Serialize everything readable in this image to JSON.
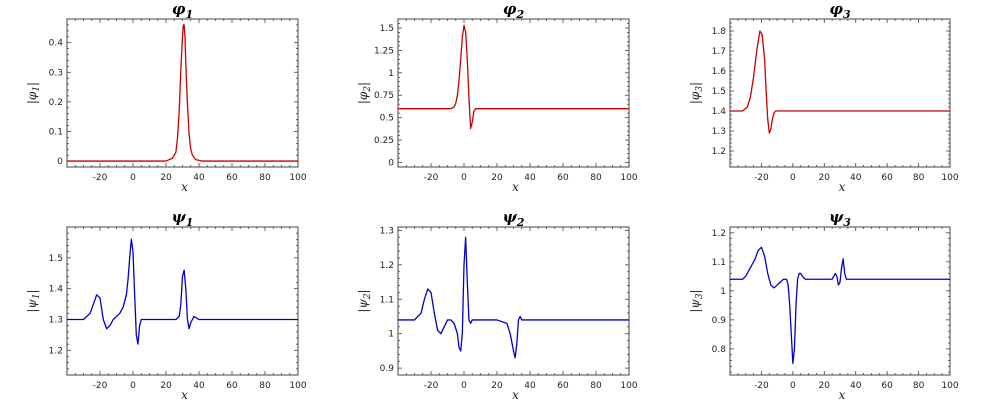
{
  "chart_data": [
    {
      "type": "line",
      "title": "φ1",
      "title_base": "φ",
      "title_sub": "1",
      "xlabel": "x",
      "ylabel": "|φ1|",
      "ylabel_base": "φ",
      "ylabel_sub": "1",
      "xlim": [
        -40,
        100
      ],
      "ylim": [
        -0.02,
        0.48
      ],
      "xticks": [
        -20,
        0,
        20,
        40,
        60,
        80,
        100
      ],
      "yticks": [
        0,
        0.1,
        0.2,
        0.3,
        0.4
      ],
      "ytick_labels": [
        "0",
        "0.1",
        "0.2",
        "0.3",
        "0.4"
      ],
      "color": "#cc0000",
      "series": [
        {
          "x": [
            -40,
            20,
            24,
            26,
            27,
            28,
            29,
            30,
            30.5,
            31,
            31.5,
            32,
            33,
            34,
            35,
            36,
            38,
            42,
            100
          ],
          "values": [
            0,
            0,
            0.01,
            0.03,
            0.08,
            0.17,
            0.31,
            0.42,
            0.46,
            0.46,
            0.42,
            0.33,
            0.19,
            0.09,
            0.04,
            0.02,
            0.005,
            0,
            0
          ]
        }
      ]
    },
    {
      "type": "line",
      "title": "φ2",
      "title_base": "φ",
      "title_sub": "2",
      "xlabel": "x",
      "ylabel": "|φ2|",
      "ylabel_base": "φ",
      "ylabel_sub": "2",
      "xlim": [
        -40,
        100
      ],
      "ylim": [
        -0.05,
        1.6
      ],
      "xticks": [
        -20,
        0,
        20,
        40,
        60,
        80,
        100
      ],
      "yticks": [
        0,
        0.25,
        0.5,
        0.75,
        1,
        1.25,
        1.5
      ],
      "ytick_labels": [
        "0",
        "0.25",
        "0.5",
        "0.75",
        "1",
        "1.25",
        "1.5"
      ],
      "color": "#cc0000",
      "series": [
        {
          "x": [
            -40,
            -8,
            -6,
            -5,
            -4,
            -3,
            -2,
            -1,
            0,
            1,
            2,
            3,
            4,
            5,
            6,
            7,
            8,
            10,
            100
          ],
          "values": [
            0.6,
            0.6,
            0.62,
            0.66,
            0.75,
            0.92,
            1.15,
            1.4,
            1.53,
            1.45,
            1.15,
            0.72,
            0.38,
            0.45,
            0.57,
            0.6,
            0.6,
            0.6,
            0.6
          ]
        }
      ]
    },
    {
      "type": "line",
      "title": "φ3",
      "title_base": "φ",
      "title_sub": "3",
      "xlabel": "x",
      "ylabel": "|φ3|",
      "ylabel_base": "φ",
      "ylabel_sub": "3",
      "xlim": [
        -40,
        100
      ],
      "ylim": [
        1.12,
        1.86
      ],
      "xticks": [
        -20,
        0,
        20,
        40,
        60,
        80,
        100
      ],
      "yticks": [
        1.2,
        1.3,
        1.4,
        1.5,
        1.6,
        1.7,
        1.8
      ],
      "ytick_labels": [
        "1.2",
        "1.3",
        "1.4",
        "1.5",
        "1.6",
        "1.7",
        "1.8"
      ],
      "color": "#cc0000",
      "series": [
        {
          "x": [
            -40,
            -32,
            -29,
            -27,
            -25,
            -23,
            -21,
            -19.5,
            -18,
            -17,
            -16,
            -15,
            -14,
            -13,
            -12,
            -11,
            -10,
            -8,
            100
          ],
          "values": [
            1.4,
            1.4,
            1.42,
            1.47,
            1.57,
            1.7,
            1.8,
            1.78,
            1.66,
            1.5,
            1.36,
            1.29,
            1.31,
            1.36,
            1.39,
            1.4,
            1.4,
            1.4,
            1.4
          ]
        }
      ]
    },
    {
      "type": "line",
      "title": "ψ1",
      "title_base": "ψ",
      "title_sub": "1",
      "xlabel": "x",
      "ylabel": "|ψ1|",
      "ylabel_base": "ψ",
      "ylabel_sub": "1",
      "xlim": [
        -40,
        100
      ],
      "ylim": [
        1.12,
        1.6
      ],
      "xticks": [
        -20,
        0,
        20,
        40,
        60,
        80,
        100
      ],
      "yticks": [
        1.2,
        1.3,
        1.4,
        1.5
      ],
      "ytick_labels": [
        "1.2",
        "1.3",
        "1.4",
        "1.5"
      ],
      "color": "#0000cc",
      "series": [
        {
          "x": [
            -40,
            -30,
            -26,
            -24,
            -22,
            -20,
            -18,
            -16,
            -14,
            -12,
            -10,
            -8,
            -6,
            -4,
            -3,
            -2,
            -1,
            0,
            1,
            2,
            3,
            4,
            5,
            6,
            8,
            10,
            20,
            26,
            28,
            29,
            30,
            31,
            32,
            33,
            34,
            35,
            36,
            37,
            40,
            100
          ],
          "values": [
            1.3,
            1.3,
            1.32,
            1.35,
            1.38,
            1.37,
            1.3,
            1.27,
            1.28,
            1.3,
            1.31,
            1.32,
            1.34,
            1.38,
            1.43,
            1.5,
            1.56,
            1.52,
            1.38,
            1.25,
            1.22,
            1.28,
            1.3,
            1.3,
            1.3,
            1.3,
            1.3,
            1.3,
            1.31,
            1.35,
            1.44,
            1.46,
            1.4,
            1.3,
            1.27,
            1.29,
            1.3,
            1.31,
            1.3,
            1.3
          ]
        }
      ]
    },
    {
      "type": "line",
      "title": "ψ2",
      "title_base": "ψ",
      "title_sub": "2",
      "xlabel": "x",
      "ylabel": "|ψ2|",
      "ylabel_base": "ψ",
      "ylabel_sub": "2",
      "xlim": [
        -40,
        100
      ],
      "ylim": [
        0.88,
        1.31
      ],
      "xticks": [
        -20,
        0,
        20,
        40,
        60,
        80,
        100
      ],
      "yticks": [
        0.9,
        1,
        1.1,
        1.2,
        1.3
      ],
      "ytick_labels": [
        "0.9",
        "1",
        "1.1",
        "1.2",
        "1.3"
      ],
      "color": "#0000cc",
      "series": [
        {
          "x": [
            -40,
            -30,
            -26,
            -24,
            -22,
            -20,
            -18,
            -16,
            -14,
            -12,
            -10,
            -8,
            -6,
            -4,
            -3,
            -2,
            -1,
            0,
            1,
            2,
            3,
            4,
            5,
            6,
            8,
            10,
            20,
            26,
            28,
            30,
            31,
            32,
            33,
            34,
            35,
            36,
            40,
            100
          ],
          "values": [
            1.04,
            1.04,
            1.06,
            1.1,
            1.13,
            1.12,
            1.06,
            1.01,
            1.0,
            1.02,
            1.04,
            1.04,
            1.03,
            1.0,
            0.96,
            0.95,
            1.0,
            1.2,
            1.28,
            1.15,
            1.04,
            1.03,
            1.04,
            1.04,
            1.04,
            1.04,
            1.04,
            1.03,
            1.0,
            0.95,
            0.93,
            0.97,
            1.04,
            1.05,
            1.04,
            1.04,
            1.04,
            1.04
          ]
        }
      ]
    },
    {
      "type": "line",
      "title": "ψ3",
      "title_base": "ψ",
      "title_sub": "3",
      "xlabel": "x",
      "ylabel": "|ψ3|",
      "ylabel_base": "ψ",
      "ylabel_sub": "3",
      "xlim": [
        -40,
        100
      ],
      "ylim": [
        0.71,
        1.22
      ],
      "xticks": [
        -20,
        0,
        20,
        40,
        60,
        80,
        100
      ],
      "yticks": [
        0.8,
        0.9,
        1,
        1.1,
        1.2
      ],
      "ytick_labels": [
        "0.8",
        "0.9",
        "1",
        "1.1",
        "1.2"
      ],
      "color": "#0000cc",
      "series": [
        {
          "x": [
            -40,
            -32,
            -30,
            -28,
            -26,
            -24,
            -22,
            -20,
            -18,
            -16,
            -14,
            -12,
            -10,
            -8,
            -6,
            -4,
            -3,
            -2,
            -1,
            0,
            1,
            2,
            3,
            4,
            5,
            6,
            8,
            10,
            20,
            25,
            26,
            27,
            28,
            29,
            30,
            31,
            32,
            33,
            34,
            35,
            36,
            40,
            100
          ],
          "values": [
            1.04,
            1.04,
            1.05,
            1.07,
            1.09,
            1.11,
            1.14,
            1.15,
            1.12,
            1.06,
            1.02,
            1.01,
            1.02,
            1.03,
            1.04,
            1.04,
            1.02,
            0.95,
            0.85,
            0.75,
            0.8,
            0.95,
            1.04,
            1.06,
            1.06,
            1.05,
            1.04,
            1.04,
            1.04,
            1.04,
            1.05,
            1.06,
            1.05,
            1.02,
            1.03,
            1.08,
            1.11,
            1.06,
            1.04,
            1.04,
            1.04,
            1.04,
            1.04
          ]
        }
      ]
    }
  ]
}
